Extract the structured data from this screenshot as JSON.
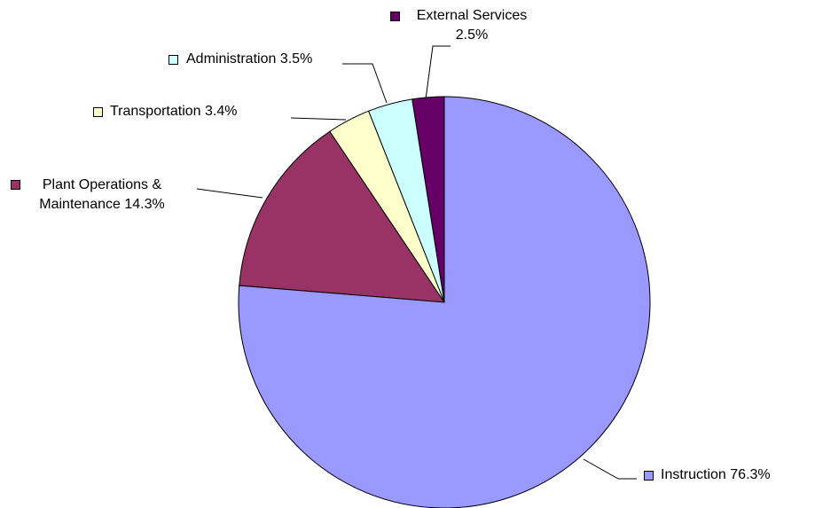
{
  "chart_data": {
    "type": "pie",
    "categories": [
      "Instruction",
      "Plant Operations & Maintenance",
      "Transportation",
      "Administration",
      "External Services"
    ],
    "values": [
      76.3,
      14.3,
      3.4,
      3.5,
      2.5
    ],
    "value_labels": [
      "76.3%",
      "14.3%",
      "3.4%",
      "3.5%",
      "2.5%"
    ],
    "colors": [
      "#9999ff",
      "#993366",
      "#ffffcc",
      "#ccffff",
      "#660066"
    ]
  }
}
